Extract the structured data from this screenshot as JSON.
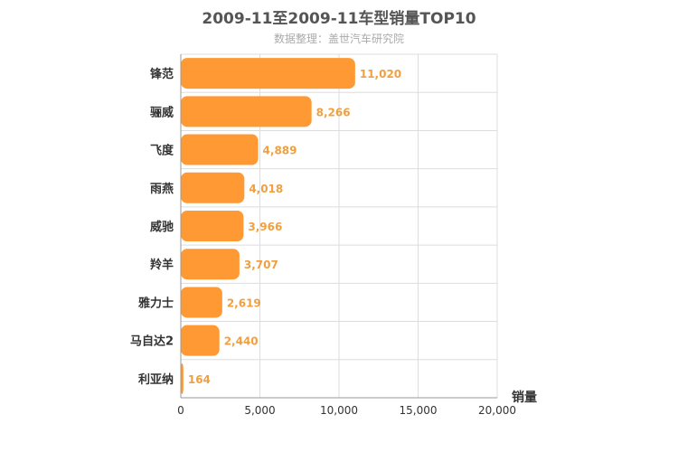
{
  "chart_data": {
    "type": "bar",
    "orientation": "horizontal",
    "title": "2009-11至2009-11车型销量TOP10",
    "subtitle": "数据整理：盖世汽车研究院",
    "xlabel": "销量",
    "ylabel": "",
    "xlim": [
      0,
      20000
    ],
    "x_ticks": [
      0,
      5000,
      10000,
      15000,
      20000
    ],
    "x_tick_labels": [
      "0",
      "5,000",
      "10,000",
      "15,000",
      "20,000"
    ],
    "grid": true,
    "bar_color": "#ff9933",
    "label_color": "#f0a040",
    "categories": [
      "锋范",
      "骊威",
      "飞度",
      "雨燕",
      "威驰",
      "羚羊",
      "雅力士",
      "马自达2",
      "利亚纳"
    ],
    "values": [
      11020,
      8266,
      4889,
      4018,
      3966,
      3707,
      2619,
      2440,
      164
    ],
    "value_labels": [
      "11,020",
      "8,266",
      "4,889",
      "4,018",
      "3,966",
      "3,707",
      "2,619",
      "2,440",
      "164"
    ]
  }
}
